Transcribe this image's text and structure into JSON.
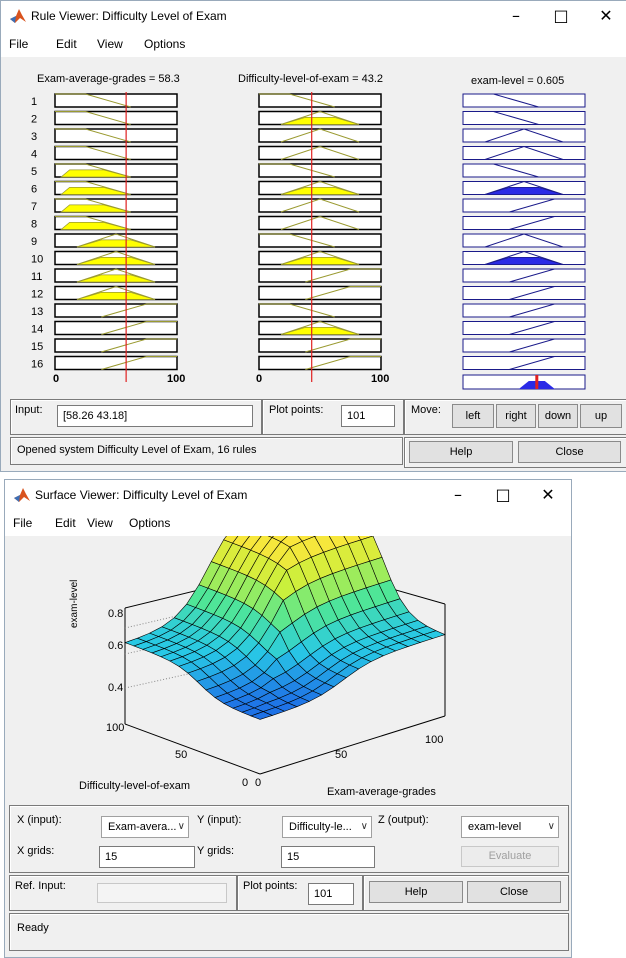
{
  "rule_viewer": {
    "title": "Rule Viewer: Difficulty Level of Exam",
    "menu": [
      "File",
      "Edit",
      "View",
      "Options"
    ],
    "headers": {
      "input1": "Exam-average-grades = 58.3",
      "input2": "Difficulty-level-of-exam = 43.2",
      "output": "exam-level = 0.605"
    },
    "rule_numbers": [
      "1",
      "2",
      "3",
      "4",
      "5",
      "6",
      "7",
      "8",
      "9",
      "10",
      "11",
      "12",
      "13",
      "14",
      "15",
      "16"
    ],
    "axis": {
      "col1": [
        "0",
        "100"
      ],
      "col2": [
        "0",
        "100"
      ]
    },
    "input_line": {
      "col1": 58.3,
      "col2": 43.2,
      "output": 0.605
    },
    "input_label": "Input:",
    "input_value": "[58.26 43.18]",
    "plot_points_label": "Plot points:",
    "plot_points_value": "101",
    "move_label": "Move:",
    "move_buttons": [
      "left",
      "right",
      "down",
      "up"
    ],
    "status": "Opened system Difficulty Level of Exam, 16 rules",
    "help_label": "Help",
    "close_label": "Close",
    "colors": {
      "fill": "#ffff00",
      "output_fill": "#2a2ae6",
      "line": "#e02020"
    }
  },
  "surface_viewer": {
    "title": "Surface Viewer: Difficulty Level of Exam",
    "menu": [
      "File",
      "Edit",
      "View",
      "Options"
    ],
    "chart": {
      "zlabel": "exam-level",
      "z_ticks": [
        "0.8",
        "0.6",
        "0.4"
      ],
      "y_ticks": [
        "100",
        "50",
        "0"
      ],
      "x_ticks": [
        "0",
        "50",
        "100"
      ],
      "xlabel": "Exam-average-grades",
      "ylabel": "Difficulty-level-of-exam"
    },
    "x_input_label": "X (input):",
    "x_input_value": "Exam-avera...",
    "y_input_label": "Y (input):",
    "y_input_value": "Difficulty-le...",
    "z_output_label": "Z (output):",
    "z_output_value": "exam-level",
    "x_grids_label": "X grids:",
    "x_grids_value": "15",
    "y_grids_label": "Y grids:",
    "y_grids_value": "15",
    "evaluate_label": "Evaluate",
    "ref_input_label": "Ref. Input:",
    "plot_points_label": "Plot points:",
    "plot_points_value": "101",
    "help_label": "Help",
    "close_label": "Close",
    "status": "Ready"
  }
}
